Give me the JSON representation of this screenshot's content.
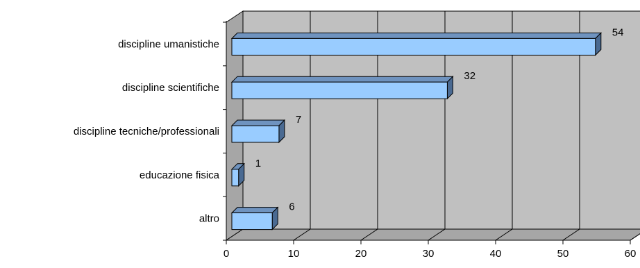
{
  "chart_data": {
    "type": "bar",
    "orientation": "horizontal",
    "style": "3d",
    "categories": [
      "discipline umanistiche",
      "discipline scientifiche",
      "discipline tecniche/professionali",
      "educazione fisica",
      "altro"
    ],
    "values": [
      54,
      32,
      7,
      1,
      6
    ],
    "xlim": [
      0,
      60
    ],
    "xticks": [
      "0",
      "10",
      "20",
      "30",
      "40",
      "50",
      "60"
    ],
    "grid": true,
    "legend": "none",
    "title": "",
    "xlabel": "",
    "ylabel": "",
    "colors": {
      "bar_front": "#99ccff",
      "bar_top": "#6f93bf",
      "bar_side": "#4a6a92",
      "wall": "#c0c0c0",
      "floor": "#a6a6a6",
      "axis": "#000000"
    }
  }
}
